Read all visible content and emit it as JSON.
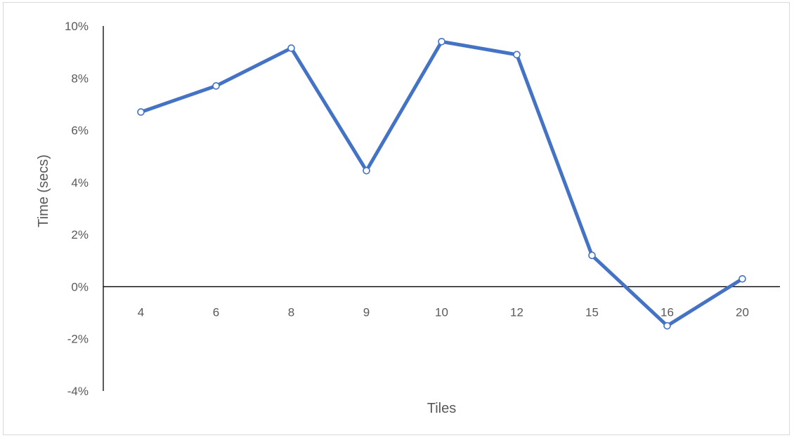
{
  "chart_data": {
    "type": "line",
    "title": "",
    "xlabel": "Tiles",
    "ylabel": "Time (secs)",
    "categories": [
      "4",
      "6",
      "8",
      "9",
      "10",
      "12",
      "15",
      "16",
      "20"
    ],
    "series": [
      {
        "values": [
          6.7,
          7.7,
          9.15,
          4.45,
          9.4,
          8.9,
          1.2,
          -1.5,
          0.3
        ],
        "color": "#4472C4"
      }
    ],
    "y_ticks": [
      "10%",
      "8%",
      "6%",
      "4%",
      "2%",
      "0%",
      "-2%",
      "-4%"
    ],
    "ylim": [
      -4,
      10
    ],
    "grid": false,
    "legend": "none",
    "marker": "circle"
  }
}
